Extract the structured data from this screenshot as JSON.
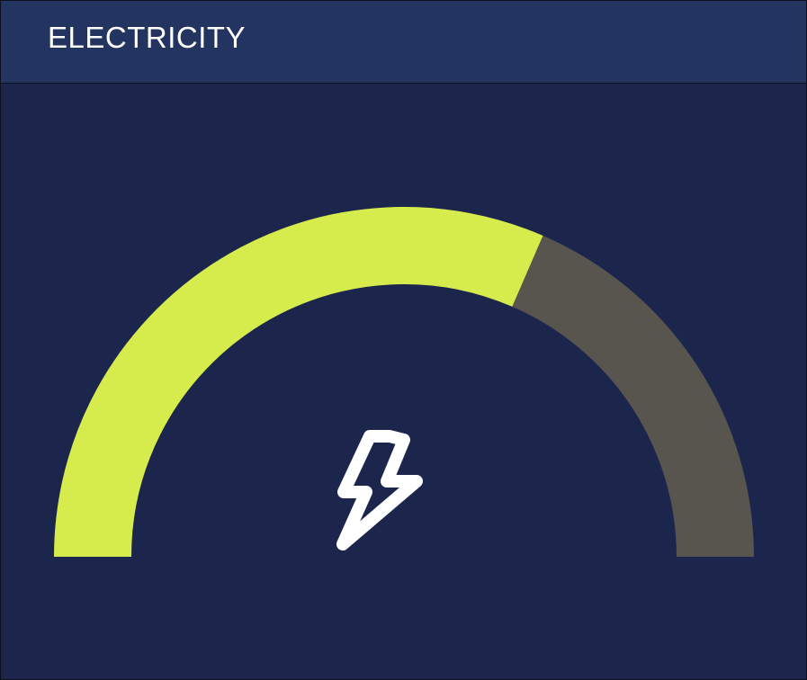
{
  "header": {
    "title": "ELECTRICITY"
  },
  "gauge": {
    "value_fraction": 0.63,
    "fill_color": "#d6eb4c",
    "track_color": "#58554f",
    "background_color": "#1c264c",
    "icon": "lightning-bolt-icon",
    "icon_color": "#ffffff"
  }
}
